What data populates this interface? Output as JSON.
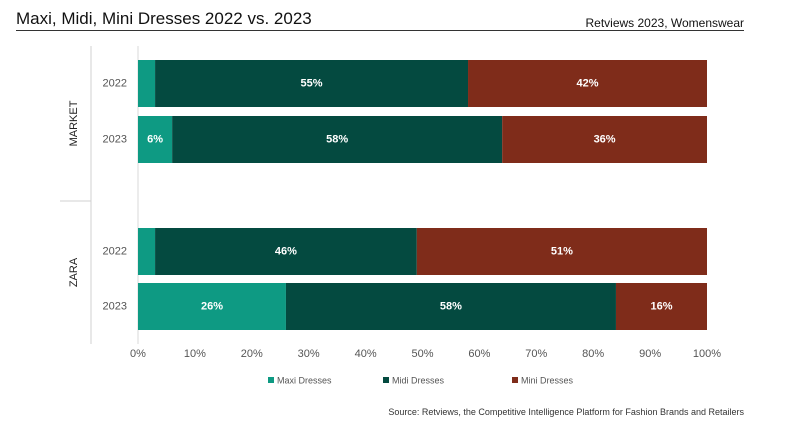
{
  "header": {
    "title": "Maxi, Midi, Mini Dresses 2022 vs. 2023",
    "subtitle": "Retviews 2023, Womenswear"
  },
  "footer": {
    "source": "Source: Retviews, the Competitive Intelligence Platform for Fashion Brands and Retailers"
  },
  "chart_data": {
    "type": "bar",
    "orientation": "horizontal",
    "stacked": "100%",
    "groups": [
      {
        "name": "MARKET",
        "categories": [
          "2022",
          "2023"
        ]
      },
      {
        "name": "ZARA",
        "categories": [
          "2022",
          "2023"
        ]
      }
    ],
    "series": [
      {
        "name": "Maxi Dresses",
        "color": "#0e9a83",
        "values": [
          3,
          6,
          3,
          26
        ],
        "labels": [
          "",
          "6%",
          "",
          "26%"
        ]
      },
      {
        "name": "Midi Dresses",
        "color": "#044a40",
        "values": [
          55,
          58,
          46,
          58
        ],
        "labels": [
          "55%",
          "58%",
          "46%",
          "58%"
        ]
      },
      {
        "name": "Mini Dresses",
        "color": "#7f2c1a",
        "values": [
          42,
          36,
          51,
          16
        ],
        "labels": [
          "42%",
          "36%",
          "51%",
          "16%"
        ]
      }
    ],
    "xlim": [
      0,
      100
    ],
    "x_ticks": [
      "0%",
      "10%",
      "20%",
      "30%",
      "40%",
      "50%",
      "60%",
      "70%",
      "80%",
      "90%",
      "100%"
    ],
    "legend_position": "bottom",
    "grid": false
  }
}
